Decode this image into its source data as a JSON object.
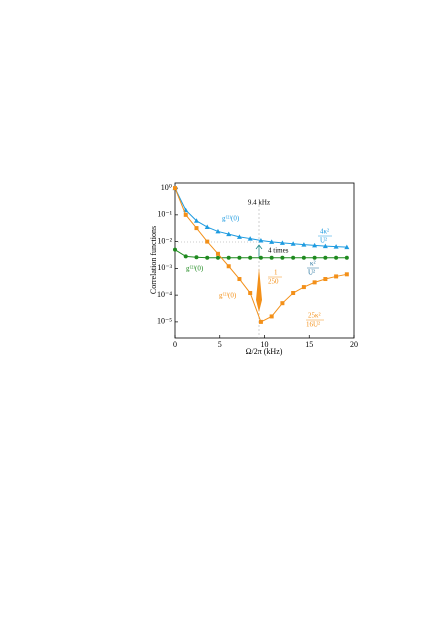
{
  "chart_data": {
    "type": "line",
    "xlabel": "Ω/2π (kHz)",
    "ylabel": "Correlation functions",
    "x": [
      0,
      1.2,
      2.4,
      3.6,
      4.8,
      6,
      7.2,
      8.4,
      9.6,
      10.8,
      12,
      13.2,
      14.4,
      15.6,
      16.8,
      18,
      19.2
    ],
    "series": [
      {
        "name": "g⁽²⁾(0)",
        "color": "#1e9be0",
        "marker": "triangle",
        "values": [
          1,
          0.15,
          0.06,
          0.035,
          0.024,
          0.019,
          0.015,
          0.013,
          0.011,
          0.0098,
          0.009,
          0.0083,
          0.0077,
          0.0072,
          0.0068,
          0.0065,
          0.0062
        ]
      },
      {
        "name": "g⁽²⁾(0) ",
        "color": "#1f8a1f",
        "marker": "circle",
        "values": [
          0.005,
          0.0028,
          0.0026,
          0.0025,
          0.0025,
          0.0025,
          0.0025,
          0.0025,
          0.0025,
          0.0025,
          0.0025,
          0.0025,
          0.0025,
          0.0025,
          0.0025,
          0.0025,
          0.0025
        ]
      },
      {
        "name": "g⁽²⁾(0)  ",
        "color": "#f39019",
        "marker": "square",
        "values": [
          1,
          0.1,
          0.032,
          0.01,
          0.0035,
          0.0012,
          0.0004,
          0.00012,
          1e-05,
          1.6e-05,
          5e-05,
          0.00012,
          0.0002,
          0.0003,
          0.0004,
          0.0005,
          0.0006
        ]
      }
    ],
    "xlim": [
      0,
      20
    ],
    "xticks": [
      0,
      5,
      10,
      15,
      20
    ],
    "ylim": [
      2.5e-06,
      1.55
    ],
    "log_y": true,
    "yticks": [
      {
        "value": 1,
        "label": "10⁰"
      },
      {
        "value": 0.1,
        "label": "10⁻¹"
      },
      {
        "value": 0.01,
        "label": "10⁻²"
      },
      {
        "value": 0.001,
        "label": "10⁻³"
      },
      {
        "value": 0.0001,
        "label": "10⁻⁴"
      },
      {
        "value": 1e-05,
        "label": "10⁻⁵"
      }
    ],
    "annotations": {
      "peak": "9.4 kHz",
      "ratio": "4 times",
      "blue_limit": {
        "num": "4κ²",
        "den": "U²"
      },
      "green_limit": {
        "num": "κ²",
        "den": "U²"
      },
      "orange_mid": {
        "num": "1",
        "den": "250"
      },
      "orange_min": {
        "num": "25κ²",
        "den": "16U²"
      }
    }
  }
}
